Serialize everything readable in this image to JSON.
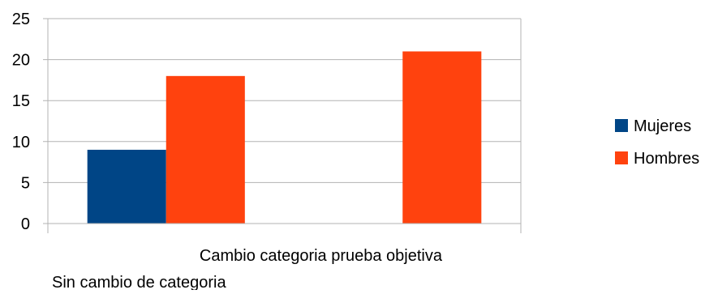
{
  "chart_data": {
    "type": "bar",
    "categories": [
      "Sin cambio de categoria",
      "Cambio categoria prueba objetiva"
    ],
    "series": [
      {
        "name": "Mujeres",
        "values": [
          9,
          0
        ],
        "color": "#004586"
      },
      {
        "name": "Hombres",
        "values": [
          18,
          21
        ],
        "color": "#ff420e"
      }
    ],
    "ylim": [
      0,
      25
    ],
    "yticks": [
      0,
      5,
      10,
      15,
      20,
      25
    ],
    "grid": true,
    "legend": "right",
    "gridline_color": "#b3b3b3"
  }
}
